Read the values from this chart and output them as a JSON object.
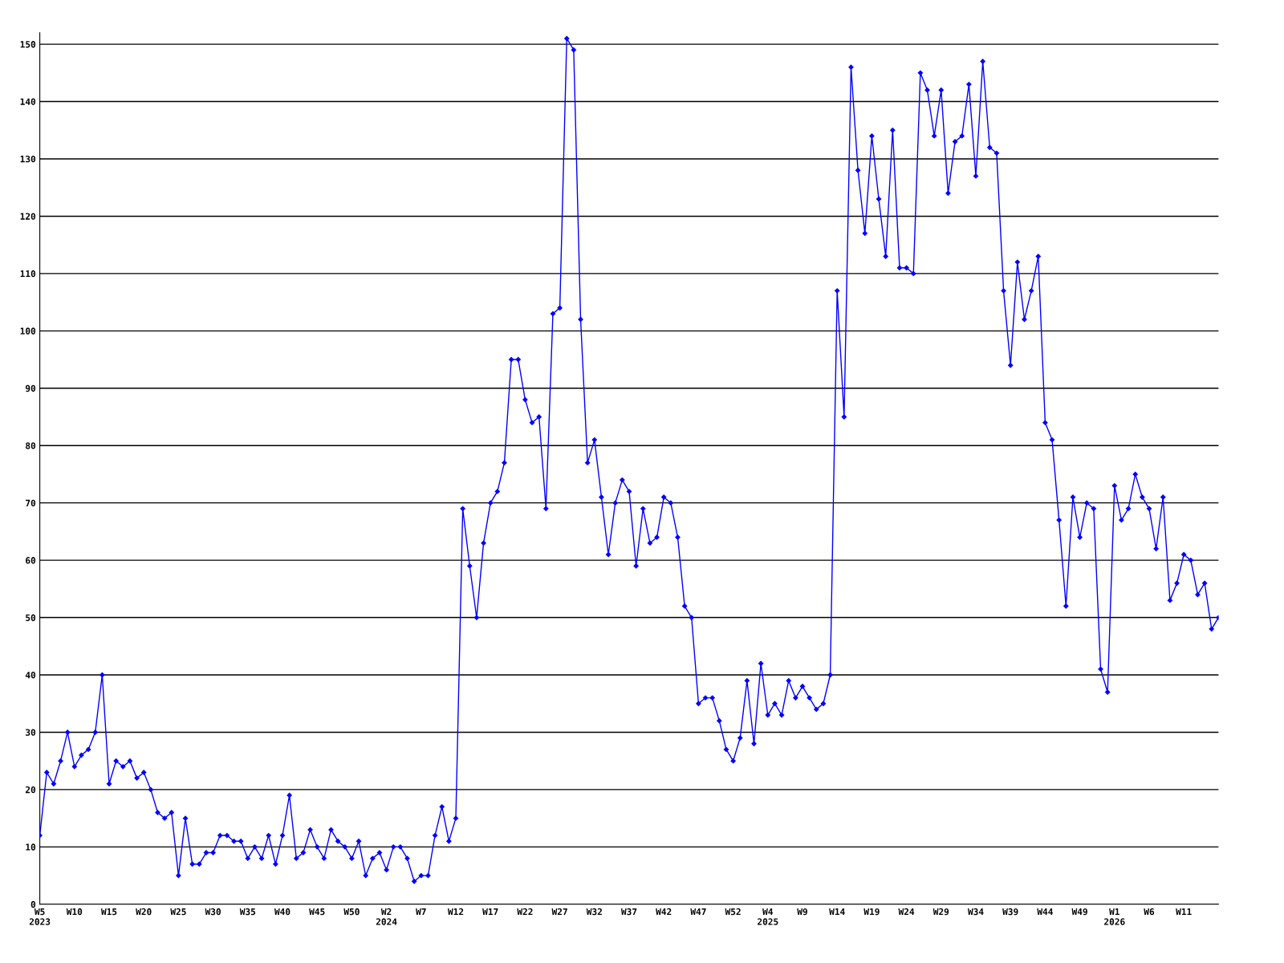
{
  "chart_data": {
    "type": "line",
    "categories": [
      "W5\n2023",
      null,
      null,
      null,
      null,
      "W10",
      null,
      null,
      null,
      null,
      "W15",
      null,
      null,
      null,
      null,
      "W20",
      null,
      null,
      null,
      null,
      "W25",
      null,
      null,
      null,
      null,
      "W30",
      null,
      null,
      null,
      null,
      "W35",
      null,
      null,
      null,
      null,
      "W40",
      null,
      null,
      null,
      null,
      "W45",
      null,
      null,
      null,
      null,
      "W50",
      null,
      null,
      null,
      null,
      "W2\n2024",
      null,
      null,
      null,
      null,
      "W7",
      null,
      null,
      null,
      null,
      "W12",
      null,
      null,
      null,
      null,
      "W17",
      null,
      null,
      null,
      null,
      "W22",
      null,
      null,
      null,
      null,
      "W27",
      null,
      null,
      null,
      null,
      "W32",
      null,
      null,
      null,
      null,
      "W37",
      null,
      null,
      null,
      null,
      "W42",
      null,
      null,
      null,
      null,
      "W47",
      null,
      null,
      null,
      null,
      "W52",
      null,
      null,
      null,
      null,
      "W4\n2025",
      null,
      null,
      null,
      null,
      "W9",
      null,
      null,
      null,
      null,
      "W14",
      null,
      null,
      null,
      null,
      "W19",
      null,
      null,
      null,
      null,
      "W24",
      null,
      null,
      null,
      null,
      "W29",
      null,
      null,
      null,
      null,
      "W34",
      null,
      null,
      null,
      null,
      "W39",
      null,
      null,
      null,
      null,
      "W44",
      null,
      null,
      null,
      null,
      "W49",
      null,
      null,
      null,
      null,
      "W1\n2026",
      null,
      null,
      null,
      null,
      "W6",
      null,
      null,
      null,
      null,
      "W11",
      null,
      null,
      null,
      null,
      null
    ],
    "series": [
      {
        "color": "#0000ff",
        "values": [
          12,
          23,
          21,
          25,
          30,
          24,
          26,
          27,
          30,
          40,
          21,
          25,
          24,
          25,
          22,
          23,
          20,
          16,
          15,
          16,
          5,
          15,
          7,
          7,
          9,
          9,
          12,
          12,
          11,
          11,
          8,
          10,
          8,
          12,
          7,
          12,
          19,
          8,
          9,
          13,
          10,
          8,
          13,
          11,
          10,
          8,
          11,
          5,
          8,
          9,
          6,
          10,
          10,
          8,
          4,
          5,
          5,
          12,
          17,
          11,
          15,
          69,
          59,
          50,
          63,
          70,
          72,
          77,
          95,
          95,
          88,
          84,
          85,
          69,
          103,
          104,
          151,
          149,
          102,
          77,
          81,
          71,
          61,
          70,
          74,
          72,
          59,
          69,
          63,
          64,
          71,
          70,
          64,
          52,
          50,
          35,
          36,
          36,
          32,
          27,
          25,
          29,
          39,
          28,
          42,
          33,
          35,
          33,
          39,
          36,
          38,
          36,
          34,
          35,
          40,
          107,
          85,
          146,
          128,
          117,
          134,
          123,
          113,
          135,
          111,
          111,
          110,
          145,
          142,
          134,
          142,
          124,
          133,
          134,
          143,
          127,
          147,
          132,
          131,
          107,
          94,
          112,
          102,
          107,
          113,
          84,
          81,
          67,
          52,
          71,
          64,
          70,
          69,
          41,
          37,
          73,
          67,
          69,
          75,
          71,
          69,
          62,
          71,
          53,
          56,
          61,
          60,
          54,
          56,
          48,
          50
        ]
      }
    ],
    "ylim": [
      0,
      152
    ],
    "yticks": [
      0,
      10,
      20,
      30,
      40,
      50,
      60,
      70,
      80,
      90,
      100,
      110,
      120,
      130,
      140,
      150
    ],
    "grid": "y",
    "marker": "diamond",
    "line_style": "solid",
    "legend": false
  }
}
